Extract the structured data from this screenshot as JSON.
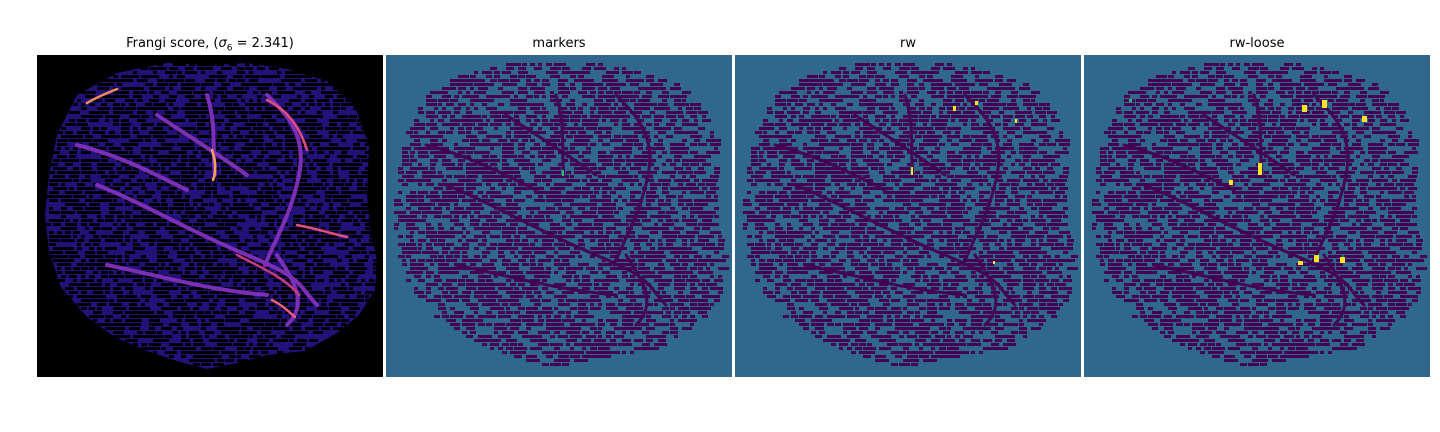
{
  "figure": {
    "panels": [
      {
        "id": "frangi",
        "title_prefix": "Frangi score, (",
        "title_symbol": "σ",
        "title_subscript": "6",
        "title_suffix": " = 2.341)",
        "colormap": "magma",
        "background": "#000000",
        "cell_colors": [
          "#0b0522",
          "#23117a",
          "#2c14a8",
          "#3b1fb8"
        ]
      },
      {
        "id": "markers",
        "title": "markers",
        "colormap": "viridis",
        "background": "#2f688c",
        "cell_color": "#440154"
      },
      {
        "id": "rw",
        "title": "rw",
        "colormap": "viridis",
        "background": "#2f688c",
        "cell_color": "#440154"
      },
      {
        "id": "rw-loose",
        "title": "rw-loose",
        "colormap": "viridis",
        "background": "#2f688c",
        "cell_color": "#440154"
      }
    ]
  }
}
